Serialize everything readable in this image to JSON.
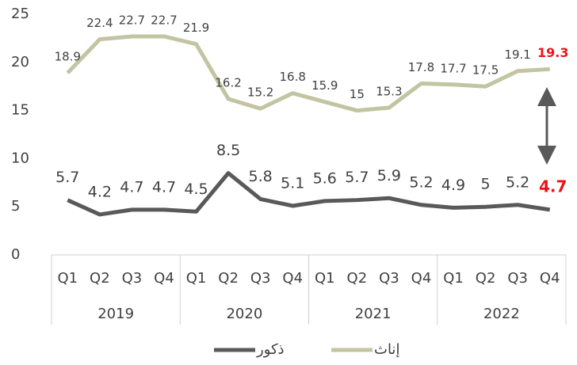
{
  "chart_data": {
    "type": "line",
    "categories": [
      "Q1",
      "Q2",
      "Q3",
      "Q4",
      "Q1",
      "Q2",
      "Q3",
      "Q4",
      "Q1",
      "Q2",
      "Q3",
      "Q4",
      "Q1",
      "Q2",
      "Q3",
      "Q4"
    ],
    "groups": [
      "2019",
      "2020",
      "2021",
      "2022"
    ],
    "series": [
      {
        "name": "إناث",
        "color": "#c3c4a2",
        "values": [
          18.9,
          22.4,
          22.7,
          22.7,
          21.9,
          16.2,
          15.2,
          16.8,
          15.9,
          15,
          15.3,
          17.8,
          17.7,
          17.5,
          19.1,
          19.3
        ]
      },
      {
        "name": "ذكور",
        "color": "#595959",
        "values": [
          5.7,
          4.2,
          4.7,
          4.7,
          4.5,
          8.5,
          5.8,
          5.1,
          5.6,
          5.7,
          5.9,
          5.2,
          4.9,
          5,
          5.2,
          4.7
        ]
      }
    ],
    "highlight_color": "#e8141a",
    "ylim": [
      0,
      25
    ],
    "yticks": [
      0,
      5,
      10,
      15,
      20,
      25
    ],
    "grid": false,
    "legend": "bottom"
  }
}
